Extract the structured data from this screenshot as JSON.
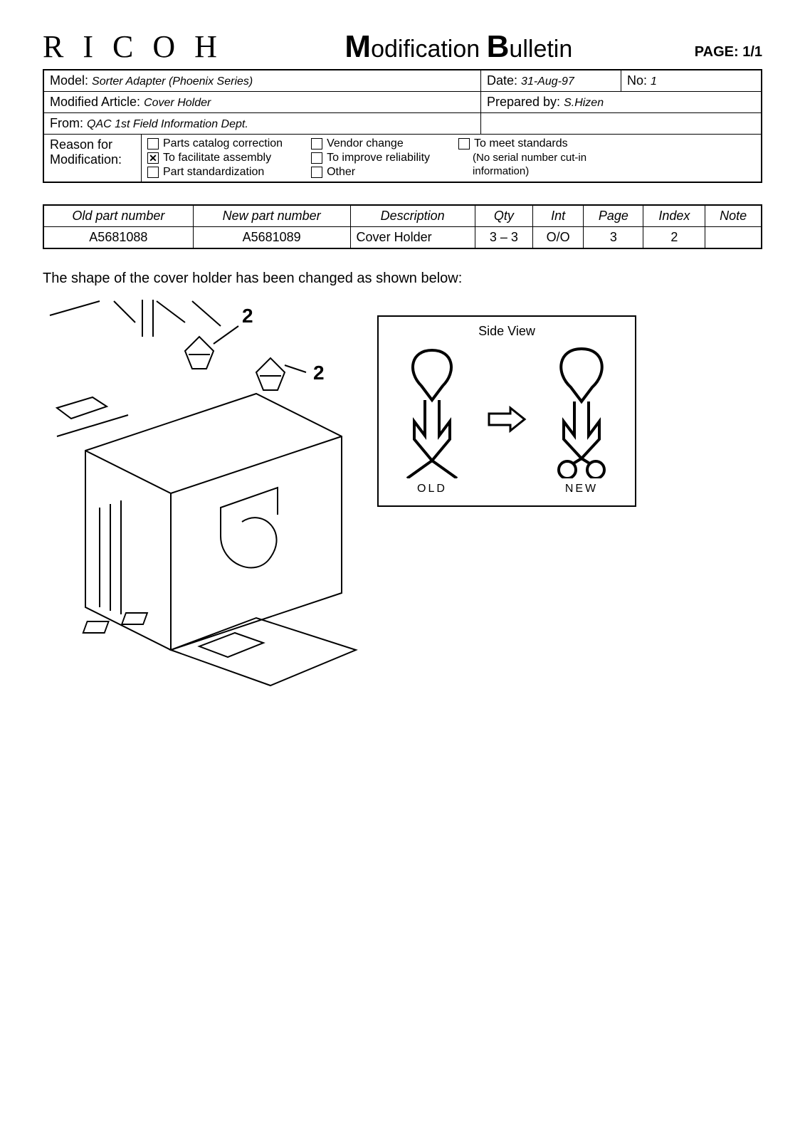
{
  "logo": "R I C O H",
  "title": {
    "m": "M",
    "mod": "odification",
    "b": "B",
    "ull": "ulletin"
  },
  "page_label": "PAGE: 1/1",
  "meta": {
    "model_label": "Model:",
    "model_value": "Sorter Adapter (Phoenix Series)",
    "date_label": "Date:",
    "date_value": "31-Aug-97",
    "no_label": "No:",
    "no_value": "1",
    "article_label": "Modified Article:",
    "article_value": "Cover Holder",
    "prepared_label": "Prepared by:",
    "prepared_value": "S.Hizen",
    "from_label": "From:",
    "from_value": "QAC 1st Field Information Dept.",
    "reason_label": "Reason for Modification:",
    "reasons_col1": [
      {
        "text": "Parts catalog correction",
        "checked": false
      },
      {
        "text": "To facilitate assembly",
        "checked": true
      },
      {
        "text": "Part standardization",
        "checked": false
      }
    ],
    "reasons_col2": [
      {
        "text": "Vendor change",
        "checked": false
      },
      {
        "text": "To improve reliability",
        "checked": false
      },
      {
        "text": "Other",
        "checked": false
      }
    ],
    "reasons_col3": [
      {
        "text": "To meet standards",
        "checked": false
      }
    ],
    "reason_note1": "(No serial number cut-in",
    "reason_note2": "information)"
  },
  "parts": {
    "headers": [
      "Old part number",
      "New part number",
      "Description",
      "Qty",
      "Int",
      "Page",
      "Index",
      "Note"
    ],
    "row": {
      "old": "A5681088",
      "new": "A5681089",
      "desc": "Cover Holder",
      "qty": "3 – 3",
      "int": "O/O",
      "page": "3",
      "index": "2",
      "note": ""
    }
  },
  "body_text": "The shape of the cover holder has been changed as shown below:",
  "sideview": {
    "title": "Side View",
    "old": "OLD",
    "new": "NEW"
  },
  "callout_label": "2"
}
